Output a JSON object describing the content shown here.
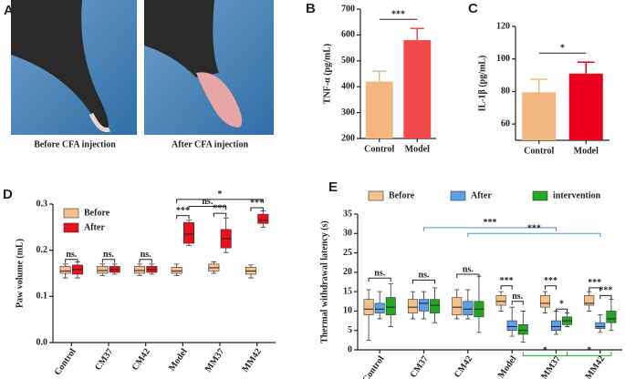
{
  "images": {
    "label": "A",
    "captions": [
      "Before CFA injection",
      "After CFA injection"
    ]
  },
  "chart_data": [
    {
      "type": "bar",
      "label": "B",
      "ylabel": "TNF-α (pg/mL)",
      "categories": [
        "Control",
        "Model"
      ],
      "values": [
        420,
        580
      ],
      "errors": [
        40,
        45
      ],
      "colors": [
        "#f5b57f",
        "#f04a4a"
      ],
      "ylim": [
        200,
        700
      ],
      "yticks": [
        200,
        300,
        400,
        500,
        600,
        700
      ],
      "significance": "***"
    },
    {
      "type": "bar",
      "label": "C",
      "ylabel": "IL-1β (pg/mL)",
      "categories": [
        "Control",
        "Model"
      ],
      "values": [
        79.5,
        91
      ],
      "errors": [
        8,
        7
      ],
      "colors": [
        "#f5b57f",
        "#e8001c"
      ],
      "ylim": [
        50,
        120
      ],
      "yticks": [
        60,
        80,
        100,
        120
      ],
      "significance": "*"
    },
    {
      "type": "box",
      "label": "D",
      "ylabel": "Paw volume (mL)",
      "legend": "upper left",
      "categories": [
        "Control",
        "CM37",
        "CM42",
        "Model",
        "MM37",
        "MM42"
      ],
      "series": [
        {
          "name": "Before",
          "color": "#f5c08a",
          "values": [
            [
              0.14,
              0.15,
              0.155,
              0.165,
              0.17
            ],
            [
              0.145,
              0.15,
              0.156,
              0.165,
              0.17
            ],
            [
              0.145,
              0.15,
              0.156,
              0.165,
              0.17
            ],
            [
              0.145,
              0.15,
              0.155,
              0.163,
              0.17
            ],
            [
              0.15,
              0.155,
              0.162,
              0.17,
              0.175
            ],
            [
              0.14,
              0.148,
              0.155,
              0.163,
              0.168
            ]
          ]
        },
        {
          "name": "After",
          "color": "#e8101c",
          "values": [
            [
              0.14,
              0.148,
              0.158,
              0.168,
              0.175
            ],
            [
              0.148,
              0.152,
              0.158,
              0.165,
              0.17
            ],
            [
              0.148,
              0.152,
              0.158,
              0.165,
              0.17
            ],
            [
              0.21,
              0.215,
              0.235,
              0.26,
              0.265
            ],
            [
              0.195,
              0.205,
              0.225,
              0.245,
              0.27
            ],
            [
              0.25,
              0.258,
              0.265,
              0.278,
              0.285
            ]
          ]
        }
      ],
      "ylim": [
        0,
        0.3
      ],
      "yticks": [
        {
          "value": 0,
          "label": "0.0"
        },
        0.1,
        0.2,
        0.3
      ],
      "annotations": [
        "ns.",
        "ns.",
        "ns.",
        "***",
        "***",
        "***",
        "ns.",
        "*"
      ]
    },
    {
      "type": "box",
      "label": "E",
      "ylabel": "Thermal withdrawal latency (s)",
      "legend": "top",
      "categories": [
        "Control",
        "CM37",
        "CM42",
        "Model",
        "MM37",
        "MM42"
      ],
      "series": [
        {
          "name": "Before",
          "color": "#f5c08a",
          "values": [
            [
              2.5,
              9,
              10.5,
              13,
              15.5
            ],
            [
              8,
              9.5,
              11,
              13,
              15
            ],
            [
              8,
              9,
              11,
              13.5,
              15.5
            ],
            [
              10,
              11.5,
              12.5,
              14,
              15
            ],
            [
              9.5,
              11,
              12,
              14,
              15
            ],
            [
              10,
              11.5,
              12,
              14,
              15
            ]
          ]
        },
        {
          "name": "After",
          "color": "#5aa0e8",
          "values": [
            [
              8,
              9.5,
              10.5,
              12,
              15
            ],
            [
              8,
              10,
              12,
              13,
              15
            ],
            [
              8,
              9,
              10.5,
              12.5,
              15.5
            ],
            [
              3.5,
              5,
              6,
              7.5,
              11
            ],
            [
              4,
              5,
              6,
              7.5,
              10
            ],
            [
              4.5,
              5.5,
              6,
              7,
              9
            ]
          ]
        },
        {
          "name": "intervention",
          "color": "#22a822",
          "values": [
            [
              6,
              9,
              11,
              13.5,
              17
            ],
            [
              7,
              9.5,
              11.5,
              13,
              16
            ],
            [
              4.5,
              8.5,
              10.5,
              12.5,
              19
            ],
            [
              2,
              4,
              5,
              6.5,
              10
            ],
            [
              6,
              6.5,
              7.5,
              8.5,
              9.5
            ],
            [
              5,
              7,
              8,
              10,
              13
            ]
          ]
        }
      ],
      "ylim": [
        0,
        35
      ],
      "yticks": [
        0,
        5,
        10,
        15,
        20,
        25,
        30,
        35
      ],
      "annotations": [
        "ns.",
        "ns.",
        "ns.",
        "***",
        "ns.",
        "***",
        "*",
        "***",
        "***",
        "***",
        "***",
        "*",
        "*"
      ]
    }
  ]
}
